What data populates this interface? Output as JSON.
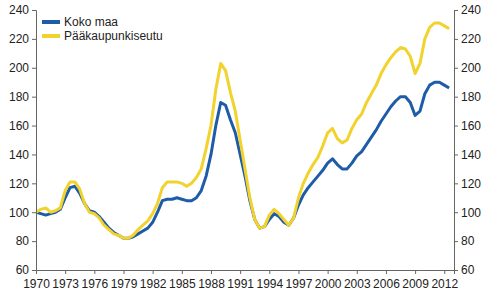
{
  "chart_data": {
    "type": "line",
    "x": [
      1970,
      1970.5,
      1971,
      1971.5,
      1972,
      1972.5,
      1973,
      1973.5,
      1974,
      1974.5,
      1975,
      1975.5,
      1976,
      1976.5,
      1977,
      1977.5,
      1978,
      1978.5,
      1979,
      1979.5,
      1980,
      1980.5,
      1981,
      1981.5,
      1982,
      1982.5,
      1983,
      1983.5,
      1984,
      1984.5,
      1985,
      1985.5,
      1986,
      1986.5,
      1987,
      1987.5,
      1988,
      1988.5,
      1989,
      1989.5,
      1990,
      1990.5,
      1991,
      1991.5,
      1992,
      1992.5,
      1993,
      1993.5,
      1994,
      1994.5,
      1995,
      1995.5,
      1996,
      1996.5,
      1997,
      1997.5,
      1998,
      1998.5,
      1999,
      1999.5,
      2000,
      2000.5,
      2001,
      2001.5,
      2002,
      2002.5,
      2003,
      2003.5,
      2004,
      2004.5,
      2005,
      2005.5,
      2006,
      2006.5,
      2007,
      2007.5,
      2008,
      2008.5,
      2009,
      2009.5,
      2010,
      2010.5,
      2011,
      2011.5,
      2012,
      2012.5
    ],
    "series": [
      {
        "name": "Koko maa",
        "color": "#1f5ca8",
        "values": [
          100,
          99,
          98,
          99,
          100,
          102,
          110,
          117,
          118,
          113,
          106,
          101,
          100,
          97,
          93,
          89,
          86,
          84,
          82,
          82,
          83,
          85,
          87,
          89,
          93,
          100,
          108,
          109,
          109,
          110,
          109,
          108,
          108,
          110,
          115,
          125,
          140,
          160,
          176,
          174,
          164,
          155,
          140,
          125,
          108,
          95,
          89,
          90,
          95,
          99,
          97,
          93,
          91,
          96,
          105,
          112,
          117,
          121,
          125,
          129,
          134,
          137,
          133,
          130,
          130,
          134,
          139,
          142,
          147,
          152,
          157,
          163,
          168,
          173,
          177,
          180,
          180,
          176,
          167,
          170,
          182,
          188,
          190,
          190,
          188,
          186
        ]
      },
      {
        "name": "Pääkaupunkiseutu",
        "color": "#f2d22c",
        "values": [
          100,
          102,
          103,
          100,
          101,
          103,
          115,
          121,
          121,
          116,
          106,
          100,
          99,
          96,
          91,
          88,
          85,
          84,
          82,
          82,
          84,
          88,
          91,
          94,
          99,
          106,
          117,
          121,
          121,
          121,
          120,
          118,
          120,
          124,
          130,
          144,
          160,
          185,
          203,
          198,
          183,
          170,
          150,
          130,
          110,
          95,
          89,
          90,
          98,
          102,
          99,
          95,
          91,
          96,
          110,
          120,
          127,
          133,
          138,
          146,
          155,
          158,
          151,
          148,
          150,
          158,
          164,
          168,
          176,
          182,
          188,
          196,
          202,
          207,
          211,
          214,
          213,
          208,
          196,
          203,
          220,
          228,
          231,
          231,
          229,
          227
        ]
      }
    ],
    "xlim": [
      1970,
      2013
    ],
    "xticks": [
      1970,
      1973,
      1976,
      1979,
      1982,
      1985,
      1988,
      1991,
      1994,
      1997,
      2000,
      2003,
      2006,
      2009,
      2012
    ],
    "ylim": [
      60,
      240
    ],
    "yticks": [
      60,
      80,
      100,
      120,
      140,
      160,
      180,
      200,
      220,
      240
    ],
    "y2lim": [
      60,
      240
    ],
    "y2ticks": [
      60,
      80,
      100,
      120,
      140,
      160,
      180,
      200,
      220,
      240
    ],
    "grid": false,
    "legend": "top-left"
  }
}
